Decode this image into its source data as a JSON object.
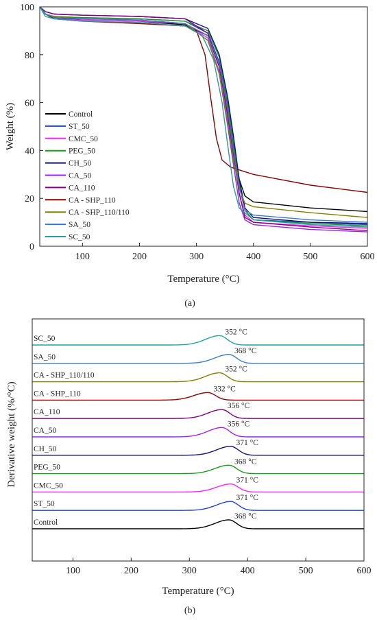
{
  "figure": {
    "panel_a_label": "(a)",
    "panel_b_label": "(b)"
  },
  "chart_data": [
    {
      "type": "line",
      "panel": "(a)",
      "xlabel": "Temperature (°C)",
      "ylabel": "Weight (%)",
      "xlim": [
        25,
        600
      ],
      "ylim": [
        0,
        100
      ],
      "xticks": [
        100,
        200,
        300,
        400,
        500,
        600
      ],
      "yticks": [
        0,
        20,
        40,
        60,
        80,
        100
      ],
      "legend_position": "left",
      "series": [
        {
          "name": "Control",
          "color": "#000000",
          "points": [
            [
              25,
              100
            ],
            [
              35,
              97
            ],
            [
              50,
              95.5
            ],
            [
              100,
              94.5
            ],
            [
              200,
              94
            ],
            [
              280,
              92.5
            ],
            [
              320,
              88
            ],
            [
              340,
              75
            ],
            [
              355,
              55
            ],
            [
              365,
              40
            ],
            [
              375,
              28
            ],
            [
              385,
              21
            ],
            [
              400,
              18.5
            ],
            [
              500,
              16
            ],
            [
              600,
              14.5
            ]
          ]
        },
        {
          "name": "ST_50",
          "color": "#1f3fdc",
          "points": [
            [
              25,
              100
            ],
            [
              35,
              97
            ],
            [
              50,
              96
            ],
            [
              100,
              95.5
            ],
            [
              200,
              95
            ],
            [
              280,
              94
            ],
            [
              320,
              89
            ],
            [
              340,
              77
            ],
            [
              355,
              58
            ],
            [
              365,
              42
            ],
            [
              375,
              25
            ],
            [
              385,
              15
            ],
            [
              400,
              11
            ],
            [
              500,
              10
            ],
            [
              600,
              9
            ]
          ]
        },
        {
          "name": "CMC_50",
          "color": "#ff21ff",
          "points": [
            [
              25,
              100
            ],
            [
              35,
              97
            ],
            [
              50,
              95
            ],
            [
              100,
              94.5
            ],
            [
              200,
              94
            ],
            [
              280,
              93
            ],
            [
              320,
              87
            ],
            [
              340,
              73
            ],
            [
              355,
              53
            ],
            [
              365,
              37
            ],
            [
              375,
              22
            ],
            [
              385,
              13
            ],
            [
              400,
              10
            ],
            [
              500,
              8.5
            ],
            [
              600,
              7.5
            ]
          ]
        },
        {
          "name": "PEG_50",
          "color": "#1a9a1a",
          "points": [
            [
              25,
              100
            ],
            [
              35,
              97
            ],
            [
              50,
              96
            ],
            [
              100,
              95.5
            ],
            [
              200,
              95
            ],
            [
              280,
              94
            ],
            [
              320,
              90
            ],
            [
              340,
              79
            ],
            [
              355,
              60
            ],
            [
              365,
              44
            ],
            [
              375,
              26
            ],
            [
              385,
              15
            ],
            [
              400,
              11
            ],
            [
              500,
              9.5
            ],
            [
              600,
              8.5
            ]
          ]
        },
        {
          "name": "CH_50",
          "color": "#10107a",
          "points": [
            [
              25,
              100
            ],
            [
              35,
              98
            ],
            [
              50,
              97
            ],
            [
              100,
              96.5
            ],
            [
              200,
              96
            ],
            [
              280,
              95
            ],
            [
              320,
              91
            ],
            [
              340,
              80
            ],
            [
              355,
              62
            ],
            [
              365,
              46
            ],
            [
              375,
              28
            ],
            [
              385,
              16
            ],
            [
              400,
              12
            ],
            [
              500,
              10
            ],
            [
              600,
              9.5
            ]
          ]
        },
        {
          "name": "CA_50",
          "color": "#a020f0",
          "points": [
            [
              25,
              100
            ],
            [
              35,
              97
            ],
            [
              50,
              95.5
            ],
            [
              100,
              95
            ],
            [
              200,
              94.5
            ],
            [
              280,
              93
            ],
            [
              320,
              86
            ],
            [
              340,
              72
            ],
            [
              355,
              50
            ],
            [
              365,
              34
            ],
            [
              375,
              18
            ],
            [
              385,
              11
            ],
            [
              400,
              9
            ],
            [
              500,
              7
            ],
            [
              600,
              6
            ]
          ]
        },
        {
          "name": "CA_110",
          "color": "#800080",
          "points": [
            [
              25,
              100
            ],
            [
              35,
              98
            ],
            [
              50,
              97
            ],
            [
              100,
              96.5
            ],
            [
              200,
              96
            ],
            [
              280,
              95
            ],
            [
              320,
              89
            ],
            [
              340,
              75
            ],
            [
              355,
              55
            ],
            [
              365,
              38
            ],
            [
              375,
              22
            ],
            [
              385,
              12
            ],
            [
              400,
              10
            ],
            [
              500,
              8
            ],
            [
              600,
              6.5
            ]
          ]
        },
        {
          "name": "CA - SHP_110",
          "color": "#8b0000",
          "points": [
            [
              25,
              100
            ],
            [
              35,
              97
            ],
            [
              50,
              95
            ],
            [
              100,
              94
            ],
            [
              200,
              93
            ],
            [
              280,
              92
            ],
            [
              300,
              90
            ],
            [
              315,
              80
            ],
            [
              325,
              62
            ],
            [
              335,
              45
            ],
            [
              345,
              36
            ],
            [
              360,
              33
            ],
            [
              400,
              30
            ],
            [
              500,
              25.5
            ],
            [
              600,
              22.5
            ]
          ]
        },
        {
          "name": "CA - SHP_110/110",
          "color": "#808000",
          "points": [
            [
              25,
              100
            ],
            [
              35,
              97
            ],
            [
              50,
              96
            ],
            [
              100,
              95
            ],
            [
              200,
              94.5
            ],
            [
              280,
              93
            ],
            [
              320,
              86
            ],
            [
              340,
              72
            ],
            [
              355,
              52
            ],
            [
              365,
              36
            ],
            [
              375,
              24
            ],
            [
              385,
              18
            ],
            [
              400,
              16.5
            ],
            [
              500,
              14
            ],
            [
              600,
              12
            ]
          ]
        },
        {
          "name": "SA_50",
          "color": "#3a78c8",
          "points": [
            [
              25,
              100
            ],
            [
              35,
              97
            ],
            [
              50,
              95.5
            ],
            [
              100,
              95
            ],
            [
              200,
              94.5
            ],
            [
              280,
              93
            ],
            [
              320,
              88
            ],
            [
              340,
              76
            ],
            [
              355,
              57
            ],
            [
              365,
              40
            ],
            [
              375,
              25
            ],
            [
              385,
              15
            ],
            [
              400,
              13
            ],
            [
              500,
              11
            ],
            [
              600,
              10
            ]
          ]
        },
        {
          "name": "SC_50",
          "color": "#20a0a0",
          "points": [
            [
              25,
              100
            ],
            [
              35,
              96
            ],
            [
              50,
              95
            ],
            [
              100,
              94
            ],
            [
              200,
              93.5
            ],
            [
              280,
              92
            ],
            [
              310,
              88
            ],
            [
              330,
              78
            ],
            [
              345,
              60
            ],
            [
              355,
              42
            ],
            [
              365,
              25
            ],
            [
              375,
              16
            ],
            [
              400,
              11
            ],
            [
              500,
              9
            ],
            [
              600,
              8
            ]
          ]
        }
      ]
    },
    {
      "type": "line",
      "panel": "(b)",
      "xlabel": "Temperature (°C)",
      "ylabel": "Derivative weight (%/°C)",
      "xlim": [
        30,
        600
      ],
      "xticks": [
        100,
        200,
        300,
        400,
        500,
        600
      ],
      "series": [
        {
          "name": "Control",
          "color": "#000000",
          "peak_temp": 368,
          "peak_label": "368 °C",
          "peak_height": 1.0
        },
        {
          "name": "ST_50",
          "color": "#1f3fdc",
          "peak_temp": 371,
          "peak_label": "371 °C",
          "peak_height": 1.0
        },
        {
          "name": "CMC_50",
          "color": "#ff21ff",
          "peak_temp": 371,
          "peak_label": "371 °C",
          "peak_height": 0.9
        },
        {
          "name": "PEG_50",
          "color": "#1a9a1a",
          "peak_temp": 368,
          "peak_label": "368 °C",
          "peak_height": 0.95
        },
        {
          "name": "CH_50",
          "color": "#10107a",
          "peak_temp": 371,
          "peak_label": "371 °C",
          "peak_height": 1.0
        },
        {
          "name": "CA_50",
          "color": "#a020f0",
          "peak_temp": 356,
          "peak_label": "356 °C",
          "peak_height": 1.05
        },
        {
          "name": "CA_110",
          "color": "#800080",
          "peak_temp": 356,
          "peak_label": "356 °C",
          "peak_height": 1.0
        },
        {
          "name": "CA - SHP_110",
          "color": "#8b0000",
          "peak_temp": 332,
          "peak_label": "332 °C",
          "peak_height": 0.85
        },
        {
          "name": "CA - SHP_110/110",
          "color": "#808000",
          "peak_temp": 352,
          "peak_label": "352 °C",
          "peak_height": 1.0
        },
        {
          "name": "SA_50",
          "color": "#3a78c8",
          "peak_temp": 368,
          "peak_label": "368 °C",
          "peak_height": 1.0
        },
        {
          "name": "SC_50",
          "color": "#20a0a0",
          "peak_temp": 352,
          "peak_label": "352 °C",
          "peak_height": 1.05
        }
      ]
    }
  ]
}
